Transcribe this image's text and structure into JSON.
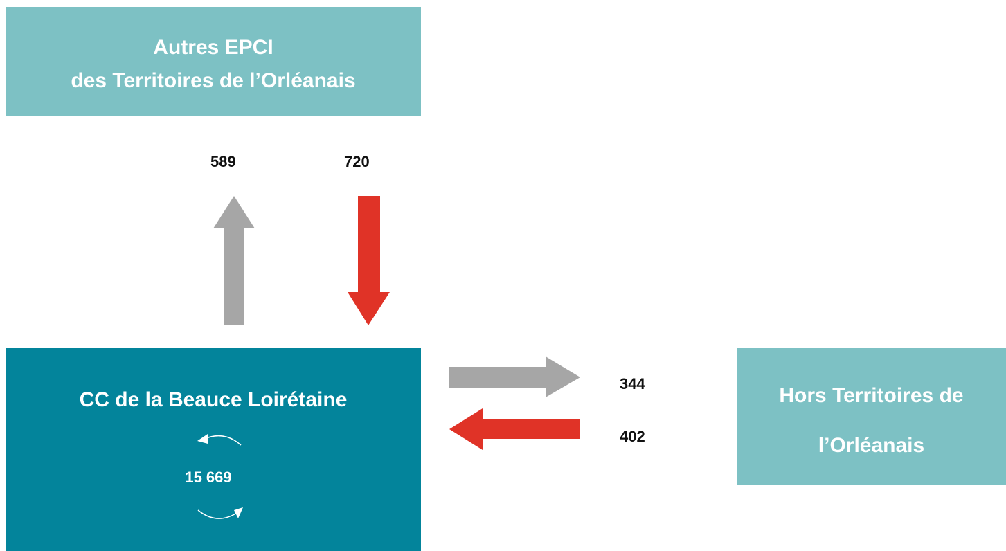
{
  "nodes": [
    {
      "lines": [
        "Autres EPCI",
        "des Territoires de l’Orléanais"
      ]
    },
    {
      "label": "CC de la Beauce Loirétaine",
      "internal": "15 669"
    },
    {
      "lines": [
        "Hors Territoires de",
        "l’Orléanais"
      ]
    }
  ],
  "flows": [
    589,
    720,
    344,
    402
  ]
}
